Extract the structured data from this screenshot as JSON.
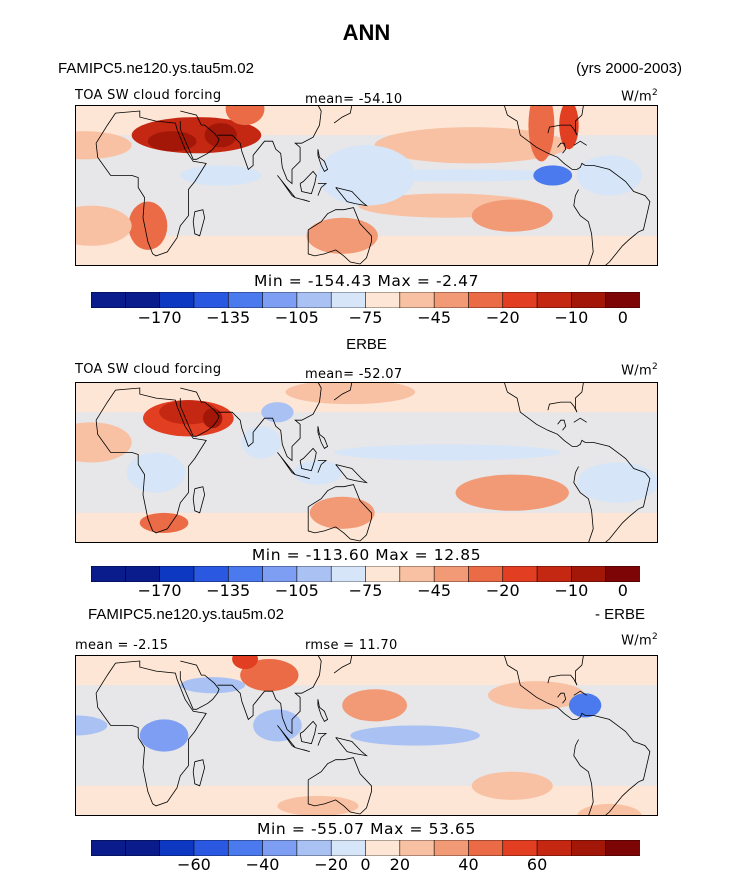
{
  "title": "ANN",
  "colors": {
    "diverging_palette": [
      "#0a1b8c",
      "#0d38c2",
      "#2a58e0",
      "#4b79ee",
      "#7d9ef2",
      "#aac1f4",
      "#d6e5f8",
      "#fde6d5",
      "#f9c1a3",
      "#f29a76",
      "#ea6b46",
      "#e13e22",
      "#c42712",
      "#a31709",
      "#7e0505"
    ],
    "coast": "#000000"
  },
  "panels": [
    {
      "case_name": "FAMIPC5.ne120.ys.tau5m.02",
      "years": "(yrs 2000-2003)",
      "variable": "TOA SW cloud forcing",
      "mean_text": "mean= -54.10",
      "units_text": "W/m",
      "units_sup": "2",
      "minmax_text": "Min = -154.43 Max = -2.47",
      "colorbar_ticks": [
        "-170",
        "-135",
        "-105",
        "-75",
        "-45",
        "-20",
        "-10",
        "0"
      ]
    },
    {
      "case_name": "ERBE",
      "variable": "TOA SW cloud forcing",
      "mean_text": "mean= -52.07",
      "units_text": "W/m",
      "units_sup": "2",
      "minmax_text": "Min = -113.60 Max = 12.85",
      "colorbar_ticks": [
        "-170",
        "-135",
        "-105",
        "-75",
        "-45",
        "-20",
        "-10",
        "0"
      ]
    },
    {
      "case_name": "FAMIPC5.ne120.ys.tau5m.02",
      "case_name_right": "- ERBE",
      "mean_text": "mean = -2.15",
      "rmse_text": "rmse = 11.70",
      "units_text": "W/m",
      "units_sup": "2",
      "minmax_text": "Min = -55.07 Max = 53.65",
      "colorbar_ticks": [
        "-60",
        "-40",
        "-20",
        "0",
        "20",
        "40",
        "60"
      ]
    }
  ],
  "chart_data": [
    {
      "type": "heatmap",
      "title": "FAMIPC5.ne120.ys.tau5m.02",
      "subtitle": "TOA SW cloud forcing",
      "units": "W/m2",
      "mean": -54.1,
      "min": -154.43,
      "max": -2.47,
      "period": "(yrs 2000-2003)",
      "colorbar_levels": [
        -170,
        -135,
        -105,
        -75,
        -45,
        -20,
        -10,
        0
      ],
      "regions": [
        {
          "cx": 45,
          "cy": 25,
          "rx": 40,
          "ry": 9,
          "level": 12
        },
        {
          "cx": 30,
          "cy": 22,
          "rx": 15,
          "ry": 5,
          "level": 13
        },
        {
          "cx": 60,
          "cy": 25,
          "rx": 10,
          "ry": 6,
          "level": 13
        },
        {
          "cx": 75,
          "cy": 38,
          "rx": 12,
          "ry": 8,
          "level": 10
        },
        {
          "cx": 15,
          "cy": -20,
          "rx": 12,
          "ry": 12,
          "level": 10
        },
        {
          "cx": -20,
          "cy": -20,
          "rx": 25,
          "ry": 10,
          "level": 8
        },
        {
          "cx": -25,
          "cy": 20,
          "rx": 30,
          "ry": 7,
          "level": 8
        },
        {
          "cx": 135,
          "cy": -25,
          "rx": 22,
          "ry": 9,
          "level": 9
        },
        {
          "cx": 200,
          "cy": -10,
          "rx": 55,
          "ry": 6,
          "level": 8
        },
        {
          "cx": 240,
          "cy": -15,
          "rx": 25,
          "ry": 8,
          "level": 9
        },
        {
          "cx": 215,
          "cy": 20,
          "rx": 60,
          "ry": 9,
          "level": 8
        },
        {
          "cx": 150,
          "cy": 5,
          "rx": 30,
          "ry": 15,
          "level": 6
        },
        {
          "cx": 60,
          "cy": 5,
          "rx": 25,
          "ry": 5,
          "level": 6
        },
        {
          "cx": 205,
          "cy": 5,
          "rx": 70,
          "ry": 3,
          "level": 6
        },
        {
          "cx": 265,
          "cy": 5,
          "rx": 12,
          "ry": 5,
          "level": 3
        },
        {
          "cx": 258,
          "cy": 30,
          "rx": 8,
          "ry": 18,
          "level": 10
        },
        {
          "cx": 275,
          "cy": 30,
          "rx": 6,
          "ry": 12,
          "level": 11
        },
        {
          "cx": 300,
          "cy": 5,
          "rx": 20,
          "ry": 10,
          "level": 6
        }
      ]
    },
    {
      "type": "heatmap",
      "title": "ERBE",
      "subtitle": "TOA SW cloud forcing",
      "units": "W/m2",
      "mean": -52.07,
      "min": -113.6,
      "max": 12.85,
      "colorbar_levels": [
        -170,
        -135,
        -105,
        -75,
        -45,
        -20,
        -10,
        0
      ],
      "regions": [
        {
          "cx": 40,
          "cy": 22,
          "rx": 28,
          "ry": 9,
          "level": 11
        },
        {
          "cx": 40,
          "cy": 25,
          "rx": 18,
          "ry": 6,
          "level": 12
        },
        {
          "cx": 55,
          "cy": 22,
          "rx": 6,
          "ry": 5,
          "level": 13
        },
        {
          "cx": 95,
          "cy": 25,
          "rx": 10,
          "ry": 5,
          "level": 5
        },
        {
          "cx": 85,
          "cy": 10,
          "rx": 12,
          "ry": 8,
          "level": 6
        },
        {
          "cx": 140,
          "cy": 35,
          "rx": 40,
          "ry": 6,
          "level": 8
        },
        {
          "cx": 240,
          "cy": -15,
          "rx": 35,
          "ry": 9,
          "level": 9
        },
        {
          "cx": 135,
          "cy": -25,
          "rx": 20,
          "ry": 8,
          "level": 9
        },
        {
          "cx": 120,
          "cy": -5,
          "rx": 15,
          "ry": 6,
          "level": 6
        },
        {
          "cx": 20,
          "cy": -5,
          "rx": 18,
          "ry": 10,
          "level": 6
        },
        {
          "cx": -20,
          "cy": 10,
          "rx": 25,
          "ry": 10,
          "level": 8
        },
        {
          "cx": 25,
          "cy": -30,
          "rx": 15,
          "ry": 5,
          "level": 10
        },
        {
          "cx": 200,
          "cy": 5,
          "rx": 70,
          "ry": 4,
          "level": 6
        },
        {
          "cx": 305,
          "cy": -10,
          "rx": 25,
          "ry": 10,
          "level": 6
        }
      ]
    },
    {
      "type": "heatmap",
      "title": "FAMIPC5.ne120.ys.tau5m.02 - ERBE",
      "units": "W/m2",
      "mean": -2.15,
      "rmse": 11.7,
      "min": -55.07,
      "max": 53.65,
      "colorbar_levels": [
        -60,
        -40,
        -20,
        0,
        20,
        40,
        60
      ],
      "regions": [
        {
          "cx": 90,
          "cy": 30,
          "rx": 18,
          "ry": 8,
          "level": 10
        },
        {
          "cx": 75,
          "cy": 38,
          "rx": 8,
          "ry": 5,
          "level": 11
        },
        {
          "cx": 155,
          "cy": 15,
          "rx": 20,
          "ry": 8,
          "level": 9
        },
        {
          "cx": 255,
          "cy": 20,
          "rx": 30,
          "ry": 7,
          "level": 8
        },
        {
          "cx": 55,
          "cy": 25,
          "rx": 20,
          "ry": 4,
          "level": 5
        },
        {
          "cx": 95,
          "cy": 5,
          "rx": 15,
          "ry": 8,
          "level": 5
        },
        {
          "cx": 180,
          "cy": 0,
          "rx": 40,
          "ry": 5,
          "level": 5
        },
        {
          "cx": 25,
          "cy": 0,
          "rx": 15,
          "ry": 8,
          "level": 4
        },
        {
          "cx": -30,
          "cy": 5,
          "rx": 20,
          "ry": 5,
          "level": 5
        },
        {
          "cx": 285,
          "cy": 15,
          "rx": 10,
          "ry": 6,
          "level": 3
        },
        {
          "cx": 240,
          "cy": -25,
          "rx": 25,
          "ry": 7,
          "level": 8
        },
        {
          "cx": 300,
          "cy": -40,
          "rx": 20,
          "ry": 6,
          "level": 8
        },
        {
          "cx": 120,
          "cy": -35,
          "rx": 25,
          "ry": 5,
          "level": 8
        }
      ]
    }
  ]
}
